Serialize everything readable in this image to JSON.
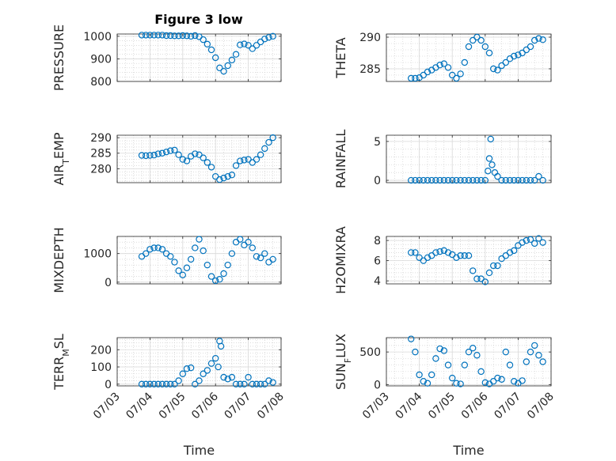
{
  "figure": {
    "title": "Figure 3 low",
    "marker_color": "#0072BD"
  },
  "chart_data": [
    {
      "type": "scatter",
      "ylabel": "PRESSURE",
      "xlabel": "",
      "xlim": [
        "07/03",
        "07/08"
      ],
      "ylim": [
        800,
        1010
      ],
      "yticks": [
        800,
        900,
        1000
      ],
      "xticks": [
        "07/03",
        "07/04",
        "07/05",
        "07/06",
        "07/07",
        "07/08"
      ],
      "show_xticklabels": false,
      "grid": "major-minor",
      "points": [
        [
          "07/03 18:00",
          1005
        ],
        [
          "07/03 21:00",
          1005
        ],
        [
          "07/04 00:00",
          1005
        ],
        [
          "07/04 03:00",
          1005
        ],
        [
          "07/04 06:00",
          1005
        ],
        [
          "07/04 09:00",
          1005
        ],
        [
          "07/04 12:00",
          1003
        ],
        [
          "07/04 15:00",
          1003
        ],
        [
          "07/04 18:00",
          1002
        ],
        [
          "07/04 21:00",
          1002
        ],
        [
          "07/05 00:00",
          1003
        ],
        [
          "07/05 03:00",
          1002
        ],
        [
          "07/05 06:00",
          1000
        ],
        [
          "07/05 09:00",
          1003
        ],
        [
          "07/05 12:00",
          998
        ],
        [
          "07/05 15:00",
          985
        ],
        [
          "07/05 18:00",
          965
        ],
        [
          "07/05 21:00",
          940
        ],
        [
          "07/06 00:00",
          905
        ],
        [
          "07/06 03:00",
          860
        ],
        [
          "07/06 06:00",
          845
        ],
        [
          "07/06 09:00",
          870
        ],
        [
          "07/06 12:00",
          895
        ],
        [
          "07/06 15:00",
          920
        ],
        [
          "07/06 18:00",
          962
        ],
        [
          "07/06 21:00",
          966
        ],
        [
          "07/07 00:00",
          960
        ],
        [
          "07/07 03:00",
          945
        ],
        [
          "07/07 06:00",
          960
        ],
        [
          "07/07 09:00",
          975
        ],
        [
          "07/07 12:00",
          988
        ],
        [
          "07/07 15:00",
          995
        ],
        [
          "07/07 18:00",
          1000
        ]
      ]
    },
    {
      "type": "scatter",
      "ylabel": "THETA",
      "xlabel": "",
      "xlim": [
        "07/03",
        "07/08"
      ],
      "ylim": [
        283,
        290.5
      ],
      "yticks": [
        285,
        290
      ],
      "xticks": [
        "07/03",
        "07/04",
        "07/05",
        "07/06",
        "07/07",
        "07/08"
      ],
      "show_xticklabels": false,
      "grid": "major-minor",
      "points": [
        [
          "07/03 18:00",
          283.5
        ],
        [
          "07/03 21:00",
          283.5
        ],
        [
          "07/04 00:00",
          283.6
        ],
        [
          "07/04 03:00",
          284
        ],
        [
          "07/04 06:00",
          284.5
        ],
        [
          "07/04 09:00",
          284.8
        ],
        [
          "07/04 12:00",
          285.2
        ],
        [
          "07/04 15:00",
          285.6
        ],
        [
          "07/04 18:00",
          285.8
        ],
        [
          "07/04 21:00",
          285.2
        ],
        [
          "07/05 00:00",
          284
        ],
        [
          "07/05 03:00",
          283.5
        ],
        [
          "07/05 06:00",
          284.2
        ],
        [
          "07/05 09:00",
          286
        ],
        [
          "07/05 12:00",
          288.5
        ],
        [
          "07/05 15:00",
          289.5
        ],
        [
          "07/05 18:00",
          290
        ],
        [
          "07/05 21:00",
          289.5
        ],
        [
          "07/06 00:00",
          288.5
        ],
        [
          "07/06 03:00",
          287.5
        ],
        [
          "07/06 06:00",
          285
        ],
        [
          "07/06 09:00",
          284.8
        ],
        [
          "07/06 12:00",
          285.5
        ],
        [
          "07/06 15:00",
          286
        ],
        [
          "07/06 18:00",
          286.6
        ],
        [
          "07/06 21:00",
          287
        ],
        [
          "07/07 00:00",
          287.2
        ],
        [
          "07/07 03:00",
          287.5
        ],
        [
          "07/07 06:00",
          288
        ],
        [
          "07/07 09:00",
          288.5
        ],
        [
          "07/07 12:00",
          289.5
        ],
        [
          "07/07 15:00",
          289.8
        ],
        [
          "07/07 18:00",
          289.6
        ]
      ]
    },
    {
      "type": "scatter",
      "ylabel": "AIR_TEMP",
      "xlabel": "",
      "xlim": [
        "07/03",
        "07/08"
      ],
      "ylim": [
        275.5,
        290.8
      ],
      "yticks": [
        280,
        285,
        290
      ],
      "xticks": [
        "07/03",
        "07/04",
        "07/05",
        "07/06",
        "07/07",
        "07/08"
      ],
      "show_xticklabels": false,
      "grid": "major-minor",
      "points": [
        [
          "07/03 18:00",
          284.3
        ],
        [
          "07/03 21:00",
          284.2
        ],
        [
          "07/04 00:00",
          284.3
        ],
        [
          "07/04 03:00",
          284.4
        ],
        [
          "07/04 06:00",
          284.8
        ],
        [
          "07/04 09:00",
          285
        ],
        [
          "07/04 12:00",
          285.4
        ],
        [
          "07/04 15:00",
          285.8
        ],
        [
          "07/04 18:00",
          286
        ],
        [
          "07/04 21:00",
          284.5
        ],
        [
          "07/05 00:00",
          283
        ],
        [
          "07/05 03:00",
          282.5
        ],
        [
          "07/05 06:00",
          284
        ],
        [
          "07/05 09:00",
          284.8
        ],
        [
          "07/05 12:00",
          284.5
        ],
        [
          "07/05 15:00",
          283.5
        ],
        [
          "07/05 18:00",
          282
        ],
        [
          "07/05 21:00",
          280.5
        ],
        [
          "07/06 00:00",
          277.5
        ],
        [
          "07/06 03:00",
          276.5
        ],
        [
          "07/06 06:00",
          277
        ],
        [
          "07/06 09:00",
          277.5
        ],
        [
          "07/06 12:00",
          278
        ],
        [
          "07/06 15:00",
          281
        ],
        [
          "07/06 18:00",
          282.5
        ],
        [
          "07/06 21:00",
          282.8
        ],
        [
          "07/07 00:00",
          283
        ],
        [
          "07/07 03:00",
          282
        ],
        [
          "07/07 06:00",
          283
        ],
        [
          "07/07 09:00",
          284.5
        ],
        [
          "07/07 12:00",
          286.5
        ],
        [
          "07/07 15:00",
          288.5
        ],
        [
          "07/07 18:00",
          290
        ]
      ]
    },
    {
      "type": "scatter",
      "ylabel": "RAINFALL",
      "xlabel": "",
      "xlim": [
        "07/03",
        "07/08"
      ],
      "ylim": [
        -0.3,
        5.8
      ],
      "yticks": [
        0,
        5
      ],
      "xticks": [
        "07/03",
        "07/04",
        "07/05",
        "07/06",
        "07/07",
        "07/08"
      ],
      "show_xticklabels": false,
      "grid": "major-minor",
      "points": [
        [
          "07/03 18:00",
          0
        ],
        [
          "07/03 21:00",
          0
        ],
        [
          "07/04 00:00",
          0
        ],
        [
          "07/04 03:00",
          0
        ],
        [
          "07/04 06:00",
          0
        ],
        [
          "07/04 09:00",
          0
        ],
        [
          "07/04 12:00",
          0
        ],
        [
          "07/04 15:00",
          0
        ],
        [
          "07/04 18:00",
          0
        ],
        [
          "07/04 21:00",
          0
        ],
        [
          "07/05 00:00",
          0
        ],
        [
          "07/05 03:00",
          0
        ],
        [
          "07/05 06:00",
          0
        ],
        [
          "07/05 09:00",
          0
        ],
        [
          "07/05 12:00",
          0
        ],
        [
          "07/05 15:00",
          0
        ],
        [
          "07/05 18:00",
          0
        ],
        [
          "07/05 21:00",
          0
        ],
        [
          "07/06 00:00",
          0
        ],
        [
          "07/06 02:00",
          1.2
        ],
        [
          "07/06 03:00",
          2.8
        ],
        [
          "07/06 04:00",
          5.3
        ],
        [
          "07/06 05:00",
          2
        ],
        [
          "07/06 07:00",
          1
        ],
        [
          "07/06 09:00",
          0.5
        ],
        [
          "07/06 12:00",
          0
        ],
        [
          "07/06 15:00",
          0
        ],
        [
          "07/06 18:00",
          0
        ],
        [
          "07/06 21:00",
          0
        ],
        [
          "07/07 00:00",
          0
        ],
        [
          "07/07 03:00",
          0
        ],
        [
          "07/07 06:00",
          0
        ],
        [
          "07/07 09:00",
          0
        ],
        [
          "07/07 12:00",
          0
        ],
        [
          "07/07 15:00",
          0.5
        ],
        [
          "07/07 18:00",
          0
        ]
      ]
    },
    {
      "type": "scatter",
      "ylabel": "MIXDEPTH",
      "xlabel": "",
      "xlim": [
        "07/03",
        "07/08"
      ],
      "ylim": [
        -60,
        1600
      ],
      "yticks": [
        0,
        1000
      ],
      "xticks": [
        "07/03",
        "07/04",
        "07/05",
        "07/06",
        "07/07",
        "07/08"
      ],
      "show_xticklabels": false,
      "grid": "major-minor",
      "points": [
        [
          "07/03 18:00",
          900
        ],
        [
          "07/03 21:00",
          1000
        ],
        [
          "07/04 00:00",
          1150
        ],
        [
          "07/04 03:00",
          1200
        ],
        [
          "07/04 06:00",
          1200
        ],
        [
          "07/04 09:00",
          1150
        ],
        [
          "07/04 12:00",
          1000
        ],
        [
          "07/04 15:00",
          900
        ],
        [
          "07/04 18:00",
          700
        ],
        [
          "07/04 21:00",
          400
        ],
        [
          "07/05 00:00",
          250
        ],
        [
          "07/05 03:00",
          500
        ],
        [
          "07/05 06:00",
          800
        ],
        [
          "07/05 09:00",
          1200
        ],
        [
          "07/05 12:00",
          1500
        ],
        [
          "07/05 15:00",
          1100
        ],
        [
          "07/05 18:00",
          600
        ],
        [
          "07/05 21:00",
          200
        ],
        [
          "07/06 00:00",
          50
        ],
        [
          "07/06 03:00",
          100
        ],
        [
          "07/06 06:00",
          300
        ],
        [
          "07/06 09:00",
          600
        ],
        [
          "07/06 12:00",
          1000
        ],
        [
          "07/06 15:00",
          1400
        ],
        [
          "07/06 18:00",
          1500
        ],
        [
          "07/06 21:00",
          1300
        ],
        [
          "07/07 00:00",
          1400
        ],
        [
          "07/07 03:00",
          1200
        ],
        [
          "07/07 06:00",
          900
        ],
        [
          "07/07 09:00",
          850
        ],
        [
          "07/07 12:00",
          1000
        ],
        [
          "07/07 15:00",
          700
        ],
        [
          "07/07 18:00",
          800
        ]
      ]
    },
    {
      "type": "scatter",
      "ylabel": "H2OMIXRA",
      "xlabel": "",
      "xlim": [
        "07/03",
        "07/08"
      ],
      "ylim": [
        3.7,
        8.4
      ],
      "yticks": [
        4,
        6,
        8
      ],
      "xticks": [
        "07/03",
        "07/04",
        "07/05",
        "07/06",
        "07/07",
        "07/08"
      ],
      "show_xticklabels": false,
      "grid": "major-minor",
      "points": [
        [
          "07/03 18:00",
          6.8
        ],
        [
          "07/03 21:00",
          6.8
        ],
        [
          "07/04 00:00",
          6.3
        ],
        [
          "07/04 03:00",
          6.0
        ],
        [
          "07/04 06:00",
          6.3
        ],
        [
          "07/04 09:00",
          6.5
        ],
        [
          "07/04 12:00",
          6.8
        ],
        [
          "07/04 15:00",
          6.9
        ],
        [
          "07/04 18:00",
          7.0
        ],
        [
          "07/04 21:00",
          6.8
        ],
        [
          "07/05 00:00",
          6.6
        ],
        [
          "07/05 03:00",
          6.3
        ],
        [
          "07/05 06:00",
          6.5
        ],
        [
          "07/05 09:00",
          6.5
        ],
        [
          "07/05 12:00",
          6.5
        ],
        [
          "07/05 15:00",
          5.0
        ],
        [
          "07/05 18:00",
          4.2
        ],
        [
          "07/05 21:00",
          4.2
        ],
        [
          "07/06 00:00",
          3.9
        ],
        [
          "07/06 03:00",
          4.8
        ],
        [
          "07/06 06:00",
          5.5
        ],
        [
          "07/06 09:00",
          5.5
        ],
        [
          "07/06 12:00",
          6.2
        ],
        [
          "07/06 15:00",
          6.5
        ],
        [
          "07/06 18:00",
          6.8
        ],
        [
          "07/06 21:00",
          7.0
        ],
        [
          "07/07 00:00",
          7.5
        ],
        [
          "07/07 03:00",
          7.8
        ],
        [
          "07/07 06:00",
          8.0
        ],
        [
          "07/07 09:00",
          8.1
        ],
        [
          "07/07 12:00",
          7.7
        ],
        [
          "07/07 15:00",
          8.2
        ],
        [
          "07/07 18:00",
          7.8
        ]
      ]
    },
    {
      "type": "scatter",
      "ylabel": "TERR_MSL",
      "xlabel": "Time",
      "xlim": [
        "07/03",
        "07/08"
      ],
      "ylim": [
        -10,
        270
      ],
      "yticks": [
        0,
        100,
        200
      ],
      "xticks": [
        "07/03",
        "07/04",
        "07/05",
        "07/06",
        "07/07",
        "07/08"
      ],
      "show_xticklabels": true,
      "grid": "major-minor",
      "points": [
        [
          "07/03 18:00",
          0
        ],
        [
          "07/03 21:00",
          0
        ],
        [
          "07/04 00:00",
          0
        ],
        [
          "07/04 03:00",
          0
        ],
        [
          "07/04 06:00",
          0
        ],
        [
          "07/04 09:00",
          0
        ],
        [
          "07/04 12:00",
          0
        ],
        [
          "07/04 15:00",
          0
        ],
        [
          "07/04 18:00",
          0
        ],
        [
          "07/04 21:00",
          20
        ],
        [
          "07/05 00:00",
          60
        ],
        [
          "07/05 03:00",
          90
        ],
        [
          "07/05 06:00",
          95
        ],
        [
          "07/05 09:00",
          0
        ],
        [
          "07/05 12:00",
          20
        ],
        [
          "07/05 15:00",
          60
        ],
        [
          "07/05 18:00",
          80
        ],
        [
          "07/05 21:00",
          120
        ],
        [
          "07/06 00:00",
          150
        ],
        [
          "07/06 02:00",
          100
        ],
        [
          "07/06 03:00",
          250
        ],
        [
          "07/06 04:00",
          220
        ],
        [
          "07/06 06:00",
          40
        ],
        [
          "07/06 09:00",
          30
        ],
        [
          "07/06 12:00",
          40
        ],
        [
          "07/06 15:00",
          0
        ],
        [
          "07/06 18:00",
          0
        ],
        [
          "07/06 21:00",
          0
        ],
        [
          "07/07 00:00",
          40
        ],
        [
          "07/07 03:00",
          0
        ],
        [
          "07/07 06:00",
          0
        ],
        [
          "07/07 09:00",
          0
        ],
        [
          "07/07 12:00",
          0
        ],
        [
          "07/07 15:00",
          20
        ],
        [
          "07/07 18:00",
          10
        ]
      ]
    },
    {
      "type": "scatter",
      "ylabel": "SUN_FLUX",
      "xlabel": "Time",
      "xlim": [
        "07/03",
        "07/08"
      ],
      "ylim": [
        -20,
        720
      ],
      "yticks": [
        0,
        500
      ],
      "xticks": [
        "07/03",
        "07/04",
        "07/05",
        "07/06",
        "07/07",
        "07/08"
      ],
      "show_xticklabels": true,
      "grid": "major-minor",
      "points": [
        [
          "07/03 18:00",
          700
        ],
        [
          "07/03 21:00",
          500
        ],
        [
          "07/04 00:00",
          150
        ],
        [
          "07/04 03:00",
          50
        ],
        [
          "07/04 06:00",
          20
        ],
        [
          "07/04 09:00",
          150
        ],
        [
          "07/04 12:00",
          400
        ],
        [
          "07/04 15:00",
          550
        ],
        [
          "07/04 18:00",
          520
        ],
        [
          "07/04 21:00",
          300
        ],
        [
          "07/05 00:00",
          100
        ],
        [
          "07/05 03:00",
          20
        ],
        [
          "07/05 06:00",
          10
        ],
        [
          "07/05 09:00",
          300
        ],
        [
          "07/05 12:00",
          500
        ],
        [
          "07/05 15:00",
          560
        ],
        [
          "07/05 18:00",
          450
        ],
        [
          "07/05 21:00",
          200
        ],
        [
          "07/06 00:00",
          30
        ],
        [
          "07/06 03:00",
          10
        ],
        [
          "07/06 06:00",
          50
        ],
        [
          "07/06 09:00",
          100
        ],
        [
          "07/06 12:00",
          80
        ],
        [
          "07/06 15:00",
          500
        ],
        [
          "07/06 18:00",
          300
        ],
        [
          "07/06 21:00",
          50
        ],
        [
          "07/07 00:00",
          20
        ],
        [
          "07/07 03:00",
          60
        ],
        [
          "07/07 06:00",
          350
        ],
        [
          "07/07 09:00",
          500
        ],
        [
          "07/07 12:00",
          600
        ],
        [
          "07/07 15:00",
          450
        ],
        [
          "07/07 18:00",
          350
        ]
      ]
    }
  ]
}
